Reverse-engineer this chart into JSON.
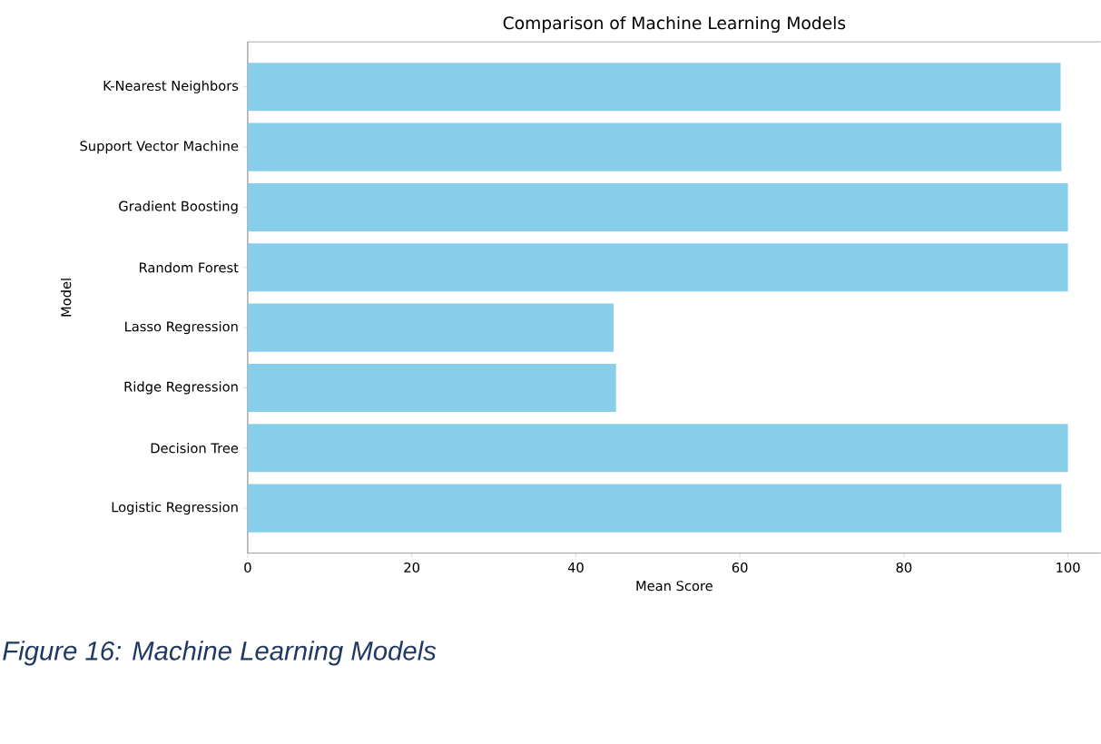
{
  "chart_data": {
    "type": "bar",
    "orientation": "horizontal",
    "title": "Comparison of Machine Learning Models",
    "xlabel": "Mean Score",
    "ylabel": "Model",
    "categories": [
      "K-Nearest Neighbors",
      "Support Vector Machine",
      "Gradient Boosting",
      "Random Forest",
      "Lasso Regression",
      "Ridge Regression",
      "Decision Tree",
      "Logistic Regression"
    ],
    "values": [
      99.1,
      99.2,
      100,
      100,
      44.6,
      44.9,
      100,
      99.2
    ],
    "color": "#87ceeb",
    "xlim": [
      0,
      104
    ],
    "xticks": [
      0,
      20,
      40,
      60,
      80,
      100
    ],
    "grid": false,
    "annotations": [
      "Figure 16: Machine Learning Models"
    ]
  }
}
